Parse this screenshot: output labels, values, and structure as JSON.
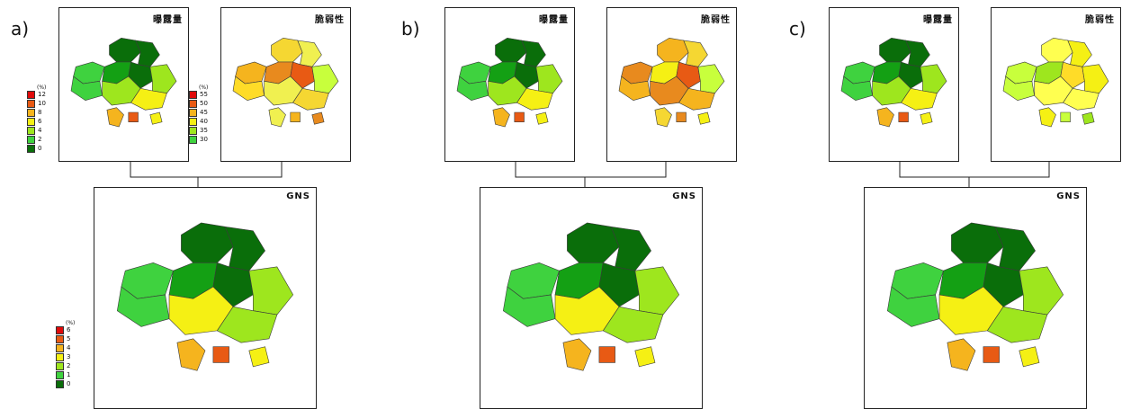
{
  "panels": [
    {
      "label": "a)",
      "exposure": {
        "title": "曝露量",
        "colors": [
          "#0a6e0a",
          "#14a014",
          "#3fd23f",
          "#9ee61e",
          "#f5f014",
          "#f5b41e",
          "#e85a14",
          "#e00a0a"
        ]
      },
      "vulnerability": {
        "title": "脆弱性",
        "colors": [
          "#f5d732",
          "#f0f050",
          "#f5b41e",
          "#e88a1e",
          "#e85a14",
          "#c8ff3c",
          "#ffdc28",
          "#f0f050"
        ]
      },
      "gns": {
        "title": "GNS",
        "colors": [
          "#0a6e0a",
          "#14a014",
          "#3fd23f",
          "#9ee61e",
          "#f5f014",
          "#f5b41e",
          "#e85a14",
          "#e00a0a"
        ]
      }
    },
    {
      "label": "b)",
      "exposure": {
        "title": "曝露量",
        "colors": [
          "#0a6e0a",
          "#14a014",
          "#3fd23f",
          "#9ee61e",
          "#f5f014",
          "#f5b41e",
          "#e85a14",
          "#e00a0a"
        ]
      },
      "vulnerability": {
        "title": "脆弱性",
        "colors": [
          "#f5b41e",
          "#f5d732",
          "#e88a1e",
          "#f5f014",
          "#e85a14",
          "#c8ff3c",
          "#f5b41e",
          "#e88a1e"
        ]
      },
      "gns": {
        "title": "GNS",
        "colors": [
          "#0a6e0a",
          "#14a014",
          "#3fd23f",
          "#9ee61e",
          "#f5f014",
          "#f5b41e",
          "#e85a14",
          "#e00a0a"
        ]
      }
    },
    {
      "label": "c)",
      "exposure": {
        "title": "曝露量",
        "colors": [
          "#0a6e0a",
          "#14a014",
          "#3fd23f",
          "#9ee61e",
          "#f5f014",
          "#f5b41e",
          "#e85a14",
          "#e00a0a"
        ]
      },
      "vulnerability": {
        "title": "脆弱性",
        "colors": [
          "#ffff50",
          "#f5f014",
          "#c8ff3c",
          "#9ee61e",
          "#ffdc28",
          "#f5f014",
          "#c8ff3c",
          "#ffff50"
        ]
      },
      "gns": {
        "title": "GNS",
        "colors": [
          "#0a6e0a",
          "#14a014",
          "#3fd23f",
          "#9ee61e",
          "#f5f014",
          "#f5b41e",
          "#e85a14",
          "#e00a0a"
        ]
      }
    }
  ],
  "legends": {
    "exposure": {
      "unit": "(%)",
      "labels": [
        "12",
        "10",
        "8",
        "6",
        "4",
        "2",
        "0"
      ],
      "colors": [
        "#e00a0a",
        "#e85a14",
        "#f5b41e",
        "#f5f014",
        "#9ee61e",
        "#3fd23f",
        "#0a6e0a"
      ]
    },
    "vulnerability": {
      "unit": "(%)",
      "labels": [
        "55",
        "50",
        "45",
        "40",
        "35",
        "30"
      ],
      "colors": [
        "#e00a0a",
        "#e85a14",
        "#f5b41e",
        "#f5f014",
        "#9ee61e",
        "#3fd23f"
      ]
    },
    "gns": {
      "unit": "(%)",
      "labels": [
        "6",
        "5",
        "4",
        "3",
        "2",
        "1",
        "0"
      ],
      "colors": [
        "#e00a0a",
        "#e85a14",
        "#f5b41e",
        "#f5f014",
        "#9ee61e",
        "#3fd23f",
        "#0a6e0a"
      ]
    }
  }
}
